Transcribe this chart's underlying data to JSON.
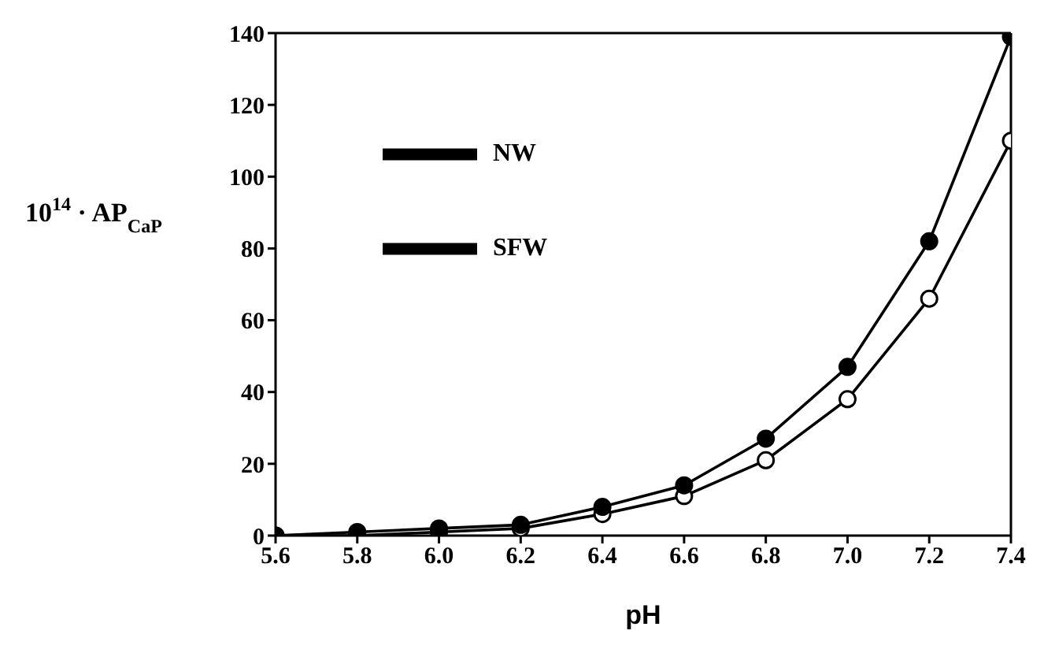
{
  "chart_data": {
    "type": "line",
    "xlabel": "pH",
    "ylabel": "10$^{14}$ · AP$_{CaP}$",
    "x": [
      5.6,
      5.8,
      6.0,
      6.2,
      6.4,
      6.6,
      6.8,
      7.0,
      7.2,
      7.4
    ],
    "series": [
      {
        "name": "NW",
        "color": "#000000",
        "values": [
          0,
          0,
          1,
          2,
          6,
          11,
          21,
          38,
          66,
          110
        ]
      },
      {
        "name": "SFW",
        "color": "#000000",
        "values": [
          0,
          1,
          2,
          3,
          8,
          14,
          27,
          47,
          82,
          139
        ]
      }
    ],
    "xlim": [
      5.6,
      7.4
    ],
    "xticks": [
      {
        "value": 5.6,
        "label": "5.6"
      },
      {
        "value": 5.8,
        "label": "5.8"
      },
      {
        "value": 6.0,
        "label": "6.0"
      },
      {
        "value": 6.2,
        "label": "6.2"
      },
      {
        "value": 6.4,
        "label": "6.4"
      },
      {
        "value": 6.6,
        "label": "6.6"
      },
      {
        "value": 6.8,
        "label": "6.8"
      },
      {
        "value": 7.0,
        "label": "7.0"
      },
      {
        "value": 7.2,
        "label": "7.2"
      },
      {
        "value": 7.4,
        "label": "7.4"
      }
    ],
    "ylim": [
      0,
      140
    ],
    "yticks": [
      0,
      20,
      40,
      60,
      80,
      100,
      120,
      140
    ],
    "grid": false,
    "legend": "top left",
    "marker": "circle",
    "line_style": "solid"
  }
}
